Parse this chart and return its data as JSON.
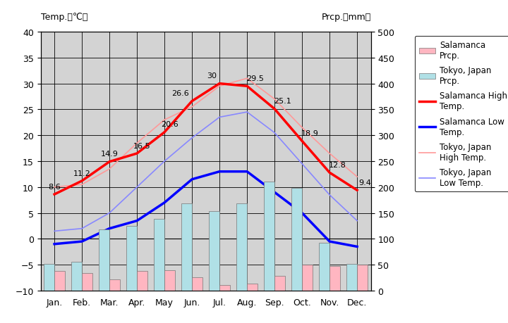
{
  "months": [
    "Jan.",
    "Feb.",
    "Mar.",
    "Apr.",
    "May",
    "Jun.",
    "Jul.",
    "Aug.",
    "Sep.",
    "Oct.",
    "Nov.",
    "Dec."
  ],
  "salamanca_high": [
    8.6,
    11.2,
    14.9,
    16.5,
    20.6,
    26.6,
    30.0,
    29.5,
    25.1,
    18.9,
    12.8,
    9.4
  ],
  "salamanca_low": [
    -1.0,
    -0.5,
    2.0,
    3.5,
    7.0,
    11.5,
    13.0,
    13.0,
    9.0,
    5.0,
    -0.5,
    -1.5
  ],
  "tokyo_high": [
    10.0,
    10.5,
    13.5,
    18.5,
    23.0,
    25.5,
    29.5,
    31.0,
    27.0,
    21.5,
    16.5,
    12.0
  ],
  "tokyo_low": [
    1.5,
    2.0,
    5.0,
    10.0,
    15.0,
    19.5,
    23.5,
    24.5,
    20.5,
    14.5,
    8.5,
    3.5
  ],
  "salamanca_prcp_mm": [
    38,
    34,
    22,
    38,
    40,
    26,
    11,
    14,
    28,
    50,
    47,
    50
  ],
  "tokyo_prcp_mm": [
    52,
    56,
    118,
    125,
    138,
    168,
    154,
    168,
    210,
    198,
    93,
    51
  ],
  "plot_bg_color": "#d3d3d3",
  "salamanca_high_color": "#ff0000",
  "salamanca_low_color": "#0000ff",
  "tokyo_high_color": "#ff9999",
  "tokyo_low_color": "#8888ff",
  "salamanca_prcp_color": "#ffb6c1",
  "tokyo_prcp_color": "#b0e0e6",
  "temp_ylim": [
    -10,
    40
  ],
  "prcp_ylim": [
    0,
    500
  ],
  "temp_yticks": [
    -10,
    -5,
    0,
    5,
    10,
    15,
    20,
    25,
    30,
    35,
    40
  ],
  "prcp_yticks": [
    0,
    50,
    100,
    150,
    200,
    250,
    300,
    350,
    400,
    450,
    500
  ],
  "sal_high_labels": [
    "8.6",
    "11.2",
    "14.9",
    "16.5",
    "20.6",
    "26.6",
    "30",
    "29.5",
    "25.1",
    "18.9",
    "12.8",
    "9.4"
  ],
  "sal_high_label_dx": [
    0,
    0,
    0,
    5,
    5,
    -12,
    -8,
    8,
    8,
    8,
    8,
    8
  ],
  "sal_high_label_dy": [
    6,
    6,
    6,
    6,
    6,
    6,
    6,
    6,
    6,
    6,
    6,
    6
  ]
}
